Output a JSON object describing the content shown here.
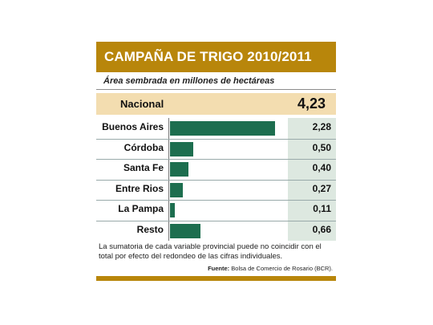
{
  "header": {
    "title": "CAMPAÑA DE TRIGO 2010/2011"
  },
  "subtitle": "Área sembrada en millones de hectáreas",
  "national": {
    "label": "Nacional",
    "value": "4,23"
  },
  "footnote": "La sumatoria de cada variable provincial puede no coincidir con el total por efecto del redondeo de las cifras individuales.",
  "source": {
    "label": "Fuente:",
    "text": "Bolsa de Comercio de Rosario (BCR)."
  },
  "colors": {
    "header": "#b8860b",
    "bar": "#1d6e4f",
    "national_bg": "#f3ddb0",
    "value_col_bg": "#dde8e0"
  },
  "chart_data": {
    "type": "bar",
    "orientation": "horizontal",
    "title": "CAMPAÑA DE TRIGO 2010/2011",
    "subtitle": "Área sembrada en millones de hectáreas",
    "categories": [
      "Buenos Aires",
      "Córdoba",
      "Santa Fe",
      "Entre Rios",
      "La Pampa",
      "Resto"
    ],
    "values": [
      2.28,
      0.5,
      0.4,
      0.27,
      0.11,
      0.66
    ],
    "value_labels": [
      "2,28",
      "0,50",
      "0,40",
      "0,27",
      "0,11",
      "0,66"
    ],
    "total": {
      "label": "Nacional",
      "value": 4.23
    },
    "xlim": [
      0,
      2.4
    ],
    "grid": false,
    "legend": "none"
  }
}
